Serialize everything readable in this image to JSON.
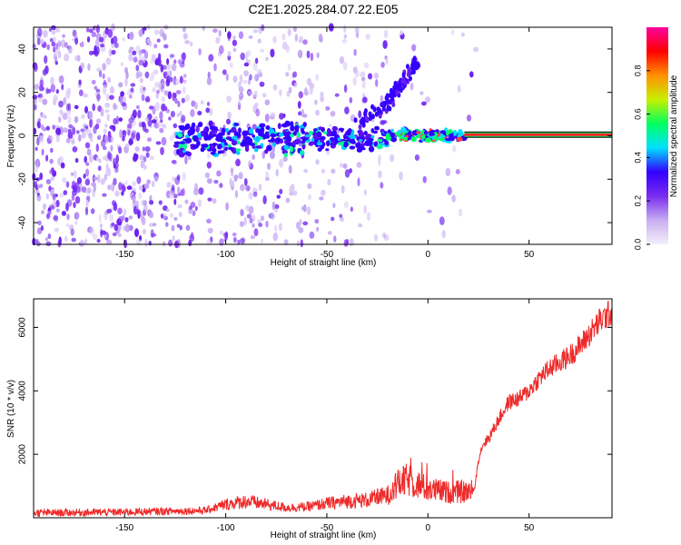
{
  "title": "C2E1.2025.284.07.22.E05",
  "colors": {
    "snr_line": "#ee2a2a",
    "colormap": [
      "#f4f0fb",
      "#c8aef0",
      "#7a2cf0",
      "#3300ff",
      "#00e0ff",
      "#00ff60",
      "#c8f000",
      "#ff9000",
      "#ff0000",
      "#ff00a0"
    ]
  },
  "chart_data": [
    {
      "type": "heatmap",
      "name": "spectrogram",
      "xlabel": "Height of straight line (km)",
      "ylabel": "Frequency (Hz)",
      "xlim": [
        -195,
        91
      ],
      "ylim": [
        -50,
        50
      ],
      "xticks": [
        -150,
        -100,
        -50,
        0,
        50
      ],
      "yticks": [
        -40,
        -20,
        0,
        20,
        40
      ],
      "features": {
        "noise_region_x": [
          -195,
          -20
        ],
        "main_band_center_hz": 0,
        "rising_branch": [
          [
            -35,
            5
          ],
          [
            -20,
            15
          ],
          [
            -15,
            22
          ],
          [
            -10,
            28
          ],
          [
            -5,
            35
          ]
        ],
        "steady_tone_x": [
          18,
          91
        ],
        "steady_tone_hz": 0.5
      },
      "colorbar": {
        "label": "Normalized spectral amplitude",
        "range": [
          0,
          1
        ],
        "ticks": [
          0.0,
          0.2,
          0.4,
          0.6,
          0.8
        ]
      }
    },
    {
      "type": "line",
      "name": "snr",
      "xlabel": "Height of straight line (km)",
      "ylabel": "SNR (10 * v/v)",
      "xlim": [
        -195,
        91
      ],
      "ylim": [
        0,
        6900
      ],
      "xticks": [
        -150,
        -100,
        -50,
        0,
        50
      ],
      "yticks": [
        2000,
        4000,
        6000
      ],
      "series": [
        {
          "x": [
            -195,
            -150,
            -110,
            -100,
            -90,
            -80,
            -70,
            -60,
            -50,
            -40,
            -30,
            -20,
            -15,
            -10,
            0,
            10,
            20,
            23,
            25,
            27,
            30,
            35,
            40,
            45,
            50,
            55,
            60,
            65,
            70,
            75,
            80,
            85,
            91
          ],
          "y": [
            150,
            180,
            230,
            420,
            520,
            420,
            320,
            340,
            450,
            520,
            560,
            700,
            1050,
            1200,
            900,
            800,
            820,
            900,
            1850,
            2300,
            2500,
            3100,
            3650,
            3750,
            4000,
            4400,
            4700,
            4900,
            5100,
            5400,
            5800,
            6200,
            6500
          ]
        }
      ]
    }
  ]
}
